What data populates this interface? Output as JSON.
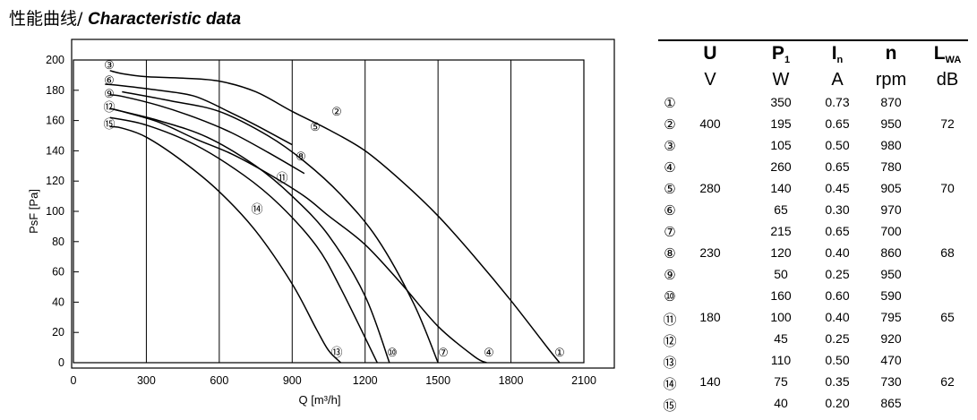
{
  "title": {
    "cn": "性能曲线/",
    "en": "Characteristic data"
  },
  "chart_data": {
    "type": "line",
    "xlabel": "Q [m³/h]",
    "ylabel": "PsF [Pa]",
    "xlim": [
      0,
      2100
    ],
    "ylim": [
      0,
      200
    ],
    "xticks": [
      "0",
      "300",
      "600",
      "900",
      "1200",
      "1500",
      "1800",
      "2100"
    ],
    "yticks": [
      "0",
      "20",
      "40",
      "60",
      "80",
      "100",
      "120",
      "140",
      "160",
      "180",
      "200"
    ],
    "grid": "vertical",
    "series": [
      {
        "name": "③",
        "label_end": "",
        "x": [
          150,
          200,
          300,
          450,
          600,
          750,
          900,
          1050,
          1200,
          1350,
          1500,
          1650,
          1800,
          1950,
          2000
        ],
        "y": [
          193,
          191,
          189,
          188,
          186,
          179,
          166,
          154,
          140,
          120,
          97,
          70,
          41,
          10,
          0
        ]
      },
      {
        "name": "⑥",
        "label_mid": "②",
        "x": [
          130,
          200,
          350,
          500,
          650,
          750,
          900
        ],
        "y": [
          184,
          183,
          180,
          176,
          165,
          157,
          144
        ]
      },
      {
        "name": "⑨",
        "x": [
          150,
          200,
          350,
          500,
          650,
          800,
          950
        ],
        "y": [
          177,
          176,
          170,
          162,
          152,
          139,
          125
        ]
      },
      {
        "name": "⑫",
        "x": [
          150,
          200,
          350,
          500,
          650,
          800,
          950,
          1050,
          1200,
          1350,
          1500,
          1650,
          1700
        ],
        "y": [
          168,
          166,
          159,
          148,
          138,
          125,
          110,
          97,
          78,
          52,
          24,
          4,
          0
        ]
      },
      {
        "name": "⑮",
        "x": [
          150,
          200,
          300,
          450,
          600,
          750,
          900,
          1000,
          1050,
          1100
        ],
        "y": [
          156,
          155,
          149,
          133,
          113,
          87,
          52,
          22,
          8,
          0
        ]
      }
    ],
    "extra_curves": [
      {
        "id": "⑤",
        "x": [
          200,
          400,
          600,
          800,
          950,
          1100,
          1250,
          1400,
          1500
        ],
        "y": [
          179,
          173,
          166,
          150,
          133,
          111,
          82,
          39,
          0
        ]
      },
      {
        "id": "⑧",
        "x": [
          150,
          350,
          550,
          750,
          900,
          1050,
          1200,
          1300
        ],
        "y": [
          168,
          160,
          149,
          130,
          110,
          84,
          44,
          0
        ]
      },
      {
        "id": "⑪",
        "x": [
          150,
          300,
          500,
          700,
          850,
          1000,
          1100,
          1250
        ],
        "y": [
          162,
          157,
          144,
          124,
          104,
          77,
          49,
          0
        ]
      }
    ],
    "end_labels": [
      "①",
      "④",
      "⑦",
      "⑩",
      "⑬"
    ],
    "curve_labels": [
      "②",
      "⑤",
      "⑧",
      "⑪",
      "⑭"
    ],
    "start_labels": [
      "③",
      "⑥",
      "⑨",
      "⑫",
      "⑮"
    ]
  },
  "table": {
    "headers": [
      {
        "name": "U",
        "unit": "V"
      },
      {
        "name": "P",
        "sub": "1",
        "unit": "W"
      },
      {
        "name": "I",
        "sub": "n",
        "unit": "A"
      },
      {
        "name": "n",
        "unit": "rpm"
      },
      {
        "name": "L",
        "sub": "WA",
        "unit": "dB"
      }
    ],
    "rows": [
      {
        "id": "①",
        "U": "",
        "P": "350",
        "I": "0.73",
        "n": "870",
        "L": ""
      },
      {
        "id": "②",
        "U": "400",
        "P": "195",
        "I": "0.65",
        "n": "950",
        "L": "72"
      },
      {
        "id": "③",
        "U": "",
        "P": "105",
        "I": "0.50",
        "n": "980",
        "L": ""
      },
      {
        "id": "④",
        "U": "",
        "P": "260",
        "I": "0.65",
        "n": "780",
        "L": ""
      },
      {
        "id": "⑤",
        "U": "280",
        "P": "140",
        "I": "0.45",
        "n": "905",
        "L": "70"
      },
      {
        "id": "⑥",
        "U": "",
        "P": "65",
        "I": "0.30",
        "n": "970",
        "L": ""
      },
      {
        "id": "⑦",
        "U": "",
        "P": "215",
        "I": "0.65",
        "n": "700",
        "L": ""
      },
      {
        "id": "⑧",
        "U": "230",
        "P": "120",
        "I": "0.40",
        "n": "860",
        "L": "68"
      },
      {
        "id": "⑨",
        "U": "",
        "P": "50",
        "I": "0.25",
        "n": "950",
        "L": ""
      },
      {
        "id": "⑩",
        "U": "",
        "P": "160",
        "I": "0.60",
        "n": "590",
        "L": ""
      },
      {
        "id": "⑪",
        "U": "180",
        "P": "100",
        "I": "0.40",
        "n": "795",
        "L": "65"
      },
      {
        "id": "⑫",
        "U": "",
        "P": "45",
        "I": "0.25",
        "n": "920",
        "L": ""
      },
      {
        "id": "⑬",
        "U": "",
        "P": "110",
        "I": "0.50",
        "n": "470",
        "L": ""
      },
      {
        "id": "⑭",
        "U": "140",
        "P": "75",
        "I": "0.35",
        "n": "730",
        "L": "62"
      },
      {
        "id": "⑮",
        "U": "",
        "P": "40",
        "I": "0.20",
        "n": "865",
        "L": ""
      }
    ]
  }
}
